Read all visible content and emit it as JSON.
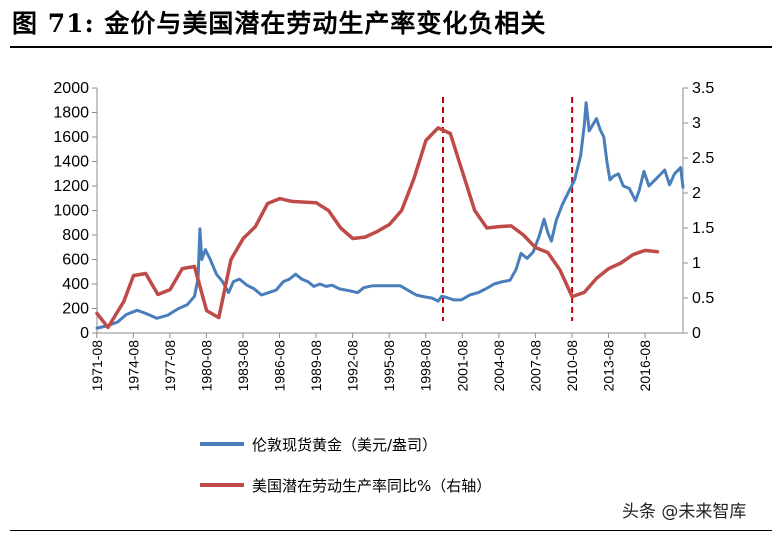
{
  "figure": {
    "title": "图 71: 金价与美国潜在劳动生产率变化负相关",
    "watermark": "头条 @未来智库"
  },
  "chart_data": {
    "type": "line",
    "x_ticks": [
      "1971-08",
      "1974-08",
      "1977-08",
      "1980-08",
      "1983-08",
      "1986-08",
      "1989-08",
      "1992-08",
      "1995-08",
      "1998-08",
      "2001-08",
      "2004-08",
      "2007-08",
      "2010-08",
      "2013-08",
      "2016-08"
    ],
    "x_range": [
      1971.6,
      2019.7
    ],
    "y_left": {
      "ticks": [
        0,
        200,
        400,
        600,
        800,
        1000,
        1200,
        1400,
        1600,
        1800,
        2000
      ],
      "ylim": [
        0,
        2000
      ]
    },
    "y_right": {
      "ticks": [
        "0",
        "0.5",
        "1",
        "1.5",
        "2",
        "2.5",
        "3",
        "3.5"
      ],
      "ylim": [
        0,
        3.5
      ]
    },
    "grid": false,
    "legend_position": "bottom",
    "series": [
      {
        "name": "伦敦现货黄金（美元/盎司）",
        "axis": "left",
        "color": "#4a7ebb",
        "points": [
          [
            1971.6,
            40
          ],
          [
            1972.5,
            60
          ],
          [
            1973.3,
            90
          ],
          [
            1974.0,
            150
          ],
          [
            1974.9,
            185
          ],
          [
            1975.6,
            160
          ],
          [
            1976.5,
            120
          ],
          [
            1977.4,
            145
          ],
          [
            1978.3,
            200
          ],
          [
            1979.0,
            230
          ],
          [
            1979.6,
            300
          ],
          [
            1979.9,
            450
          ],
          [
            1980.05,
            850
          ],
          [
            1980.2,
            600
          ],
          [
            1980.5,
            680
          ],
          [
            1980.9,
            600
          ],
          [
            1981.4,
            480
          ],
          [
            1981.9,
            420
          ],
          [
            1982.4,
            330
          ],
          [
            1982.8,
            420
          ],
          [
            1983.3,
            440
          ],
          [
            1983.9,
            390
          ],
          [
            1984.5,
            360
          ],
          [
            1985.1,
            310
          ],
          [
            1985.7,
            330
          ],
          [
            1986.3,
            350
          ],
          [
            1986.9,
            420
          ],
          [
            1987.4,
            440
          ],
          [
            1987.9,
            480
          ],
          [
            1988.4,
            440
          ],
          [
            1988.9,
            420
          ],
          [
            1989.4,
            380
          ],
          [
            1989.9,
            400
          ],
          [
            1990.4,
            380
          ],
          [
            1990.9,
            390
          ],
          [
            1991.5,
            360
          ],
          [
            1992.3,
            345
          ],
          [
            1993.0,
            330
          ],
          [
            1993.5,
            370
          ],
          [
            1994.2,
            385
          ],
          [
            1995.0,
            385
          ],
          [
            1995.8,
            385
          ],
          [
            1996.5,
            385
          ],
          [
            1997.1,
            350
          ],
          [
            1997.8,
            310
          ],
          [
            1998.5,
            295
          ],
          [
            1999.1,
            285
          ],
          [
            1999.6,
            260
          ],
          [
            1999.9,
            300
          ],
          [
            2000.3,
            290
          ],
          [
            2000.9,
            270
          ],
          [
            2001.5,
            270
          ],
          [
            2002.2,
            310
          ],
          [
            2002.9,
            330
          ],
          [
            2003.5,
            360
          ],
          [
            2004.2,
            400
          ],
          [
            2004.9,
            420
          ],
          [
            2005.5,
            430
          ],
          [
            2006.0,
            520
          ],
          [
            2006.4,
            650
          ],
          [
            2006.9,
            610
          ],
          [
            2007.4,
            660
          ],
          [
            2007.9,
            790
          ],
          [
            2008.3,
            930
          ],
          [
            2008.6,
            820
          ],
          [
            2008.9,
            750
          ],
          [
            2009.3,
            920
          ],
          [
            2009.8,
            1050
          ],
          [
            2010.3,
            1150
          ],
          [
            2010.8,
            1250
          ],
          [
            2011.3,
            1450
          ],
          [
            2011.6,
            1700
          ],
          [
            2011.75,
            1880
          ],
          [
            2012.0,
            1650
          ],
          [
            2012.3,
            1700
          ],
          [
            2012.6,
            1750
          ],
          [
            2012.9,
            1660
          ],
          [
            2013.2,
            1600
          ],
          [
            2013.45,
            1400
          ],
          [
            2013.7,
            1250
          ],
          [
            2014.0,
            1280
          ],
          [
            2014.4,
            1300
          ],
          [
            2014.8,
            1200
          ],
          [
            2015.3,
            1180
          ],
          [
            2015.8,
            1080
          ],
          [
            2016.1,
            1160
          ],
          [
            2016.5,
            1320
          ],
          [
            2016.9,
            1200
          ],
          [
            2017.4,
            1250
          ],
          [
            2017.8,
            1290
          ],
          [
            2018.2,
            1330
          ],
          [
            2018.6,
            1210
          ],
          [
            2019.0,
            1300
          ],
          [
            2019.5,
            1350
          ],
          [
            2019.7,
            1190
          ]
        ]
      },
      {
        "name": "美国潜在劳动生产率同比%（右轴）",
        "axis": "right",
        "color": "#be4b48",
        "points": [
          [
            1971.6,
            0.28
          ],
          [
            1972.5,
            0.08
          ],
          [
            1973.8,
            0.45
          ],
          [
            1974.6,
            0.82
          ],
          [
            1975.6,
            0.85
          ],
          [
            1976.6,
            0.55
          ],
          [
            1977.6,
            0.62
          ],
          [
            1978.6,
            0.92
          ],
          [
            1979.6,
            0.95
          ],
          [
            1980.6,
            0.32
          ],
          [
            1981.6,
            0.22
          ],
          [
            1982.6,
            1.05
          ],
          [
            1983.6,
            1.35
          ],
          [
            1984.6,
            1.52
          ],
          [
            1985.6,
            1.85
          ],
          [
            1986.6,
            1.92
          ],
          [
            1987.6,
            1.88
          ],
          [
            1988.6,
            1.87
          ],
          [
            1989.6,
            1.86
          ],
          [
            1990.6,
            1.75
          ],
          [
            1991.6,
            1.5
          ],
          [
            1992.6,
            1.35
          ],
          [
            1993.6,
            1.37
          ],
          [
            1994.6,
            1.45
          ],
          [
            1995.6,
            1.55
          ],
          [
            1996.6,
            1.75
          ],
          [
            1997.6,
            2.2
          ],
          [
            1998.6,
            2.75
          ],
          [
            1999.6,
            2.93
          ],
          [
            2000.6,
            2.85
          ],
          [
            2001.6,
            2.3
          ],
          [
            2002.6,
            1.75
          ],
          [
            2003.6,
            1.5
          ],
          [
            2004.6,
            1.52
          ],
          [
            2005.6,
            1.53
          ],
          [
            2006.6,
            1.4
          ],
          [
            2007.6,
            1.22
          ],
          [
            2008.6,
            1.15
          ],
          [
            2009.6,
            0.9
          ],
          [
            2010.6,
            0.52
          ],
          [
            2011.6,
            0.58
          ],
          [
            2012.6,
            0.78
          ],
          [
            2013.6,
            0.92
          ],
          [
            2014.6,
            1.0
          ],
          [
            2015.6,
            1.12
          ],
          [
            2016.6,
            1.18
          ],
          [
            2017.6,
            1.16
          ]
        ]
      }
    ],
    "reference_lines": [
      {
        "x": 2000.0,
        "style": "dashed",
        "color": "#c00000"
      },
      {
        "x": 2010.6,
        "style": "dashed",
        "color": "#c00000"
      }
    ]
  }
}
